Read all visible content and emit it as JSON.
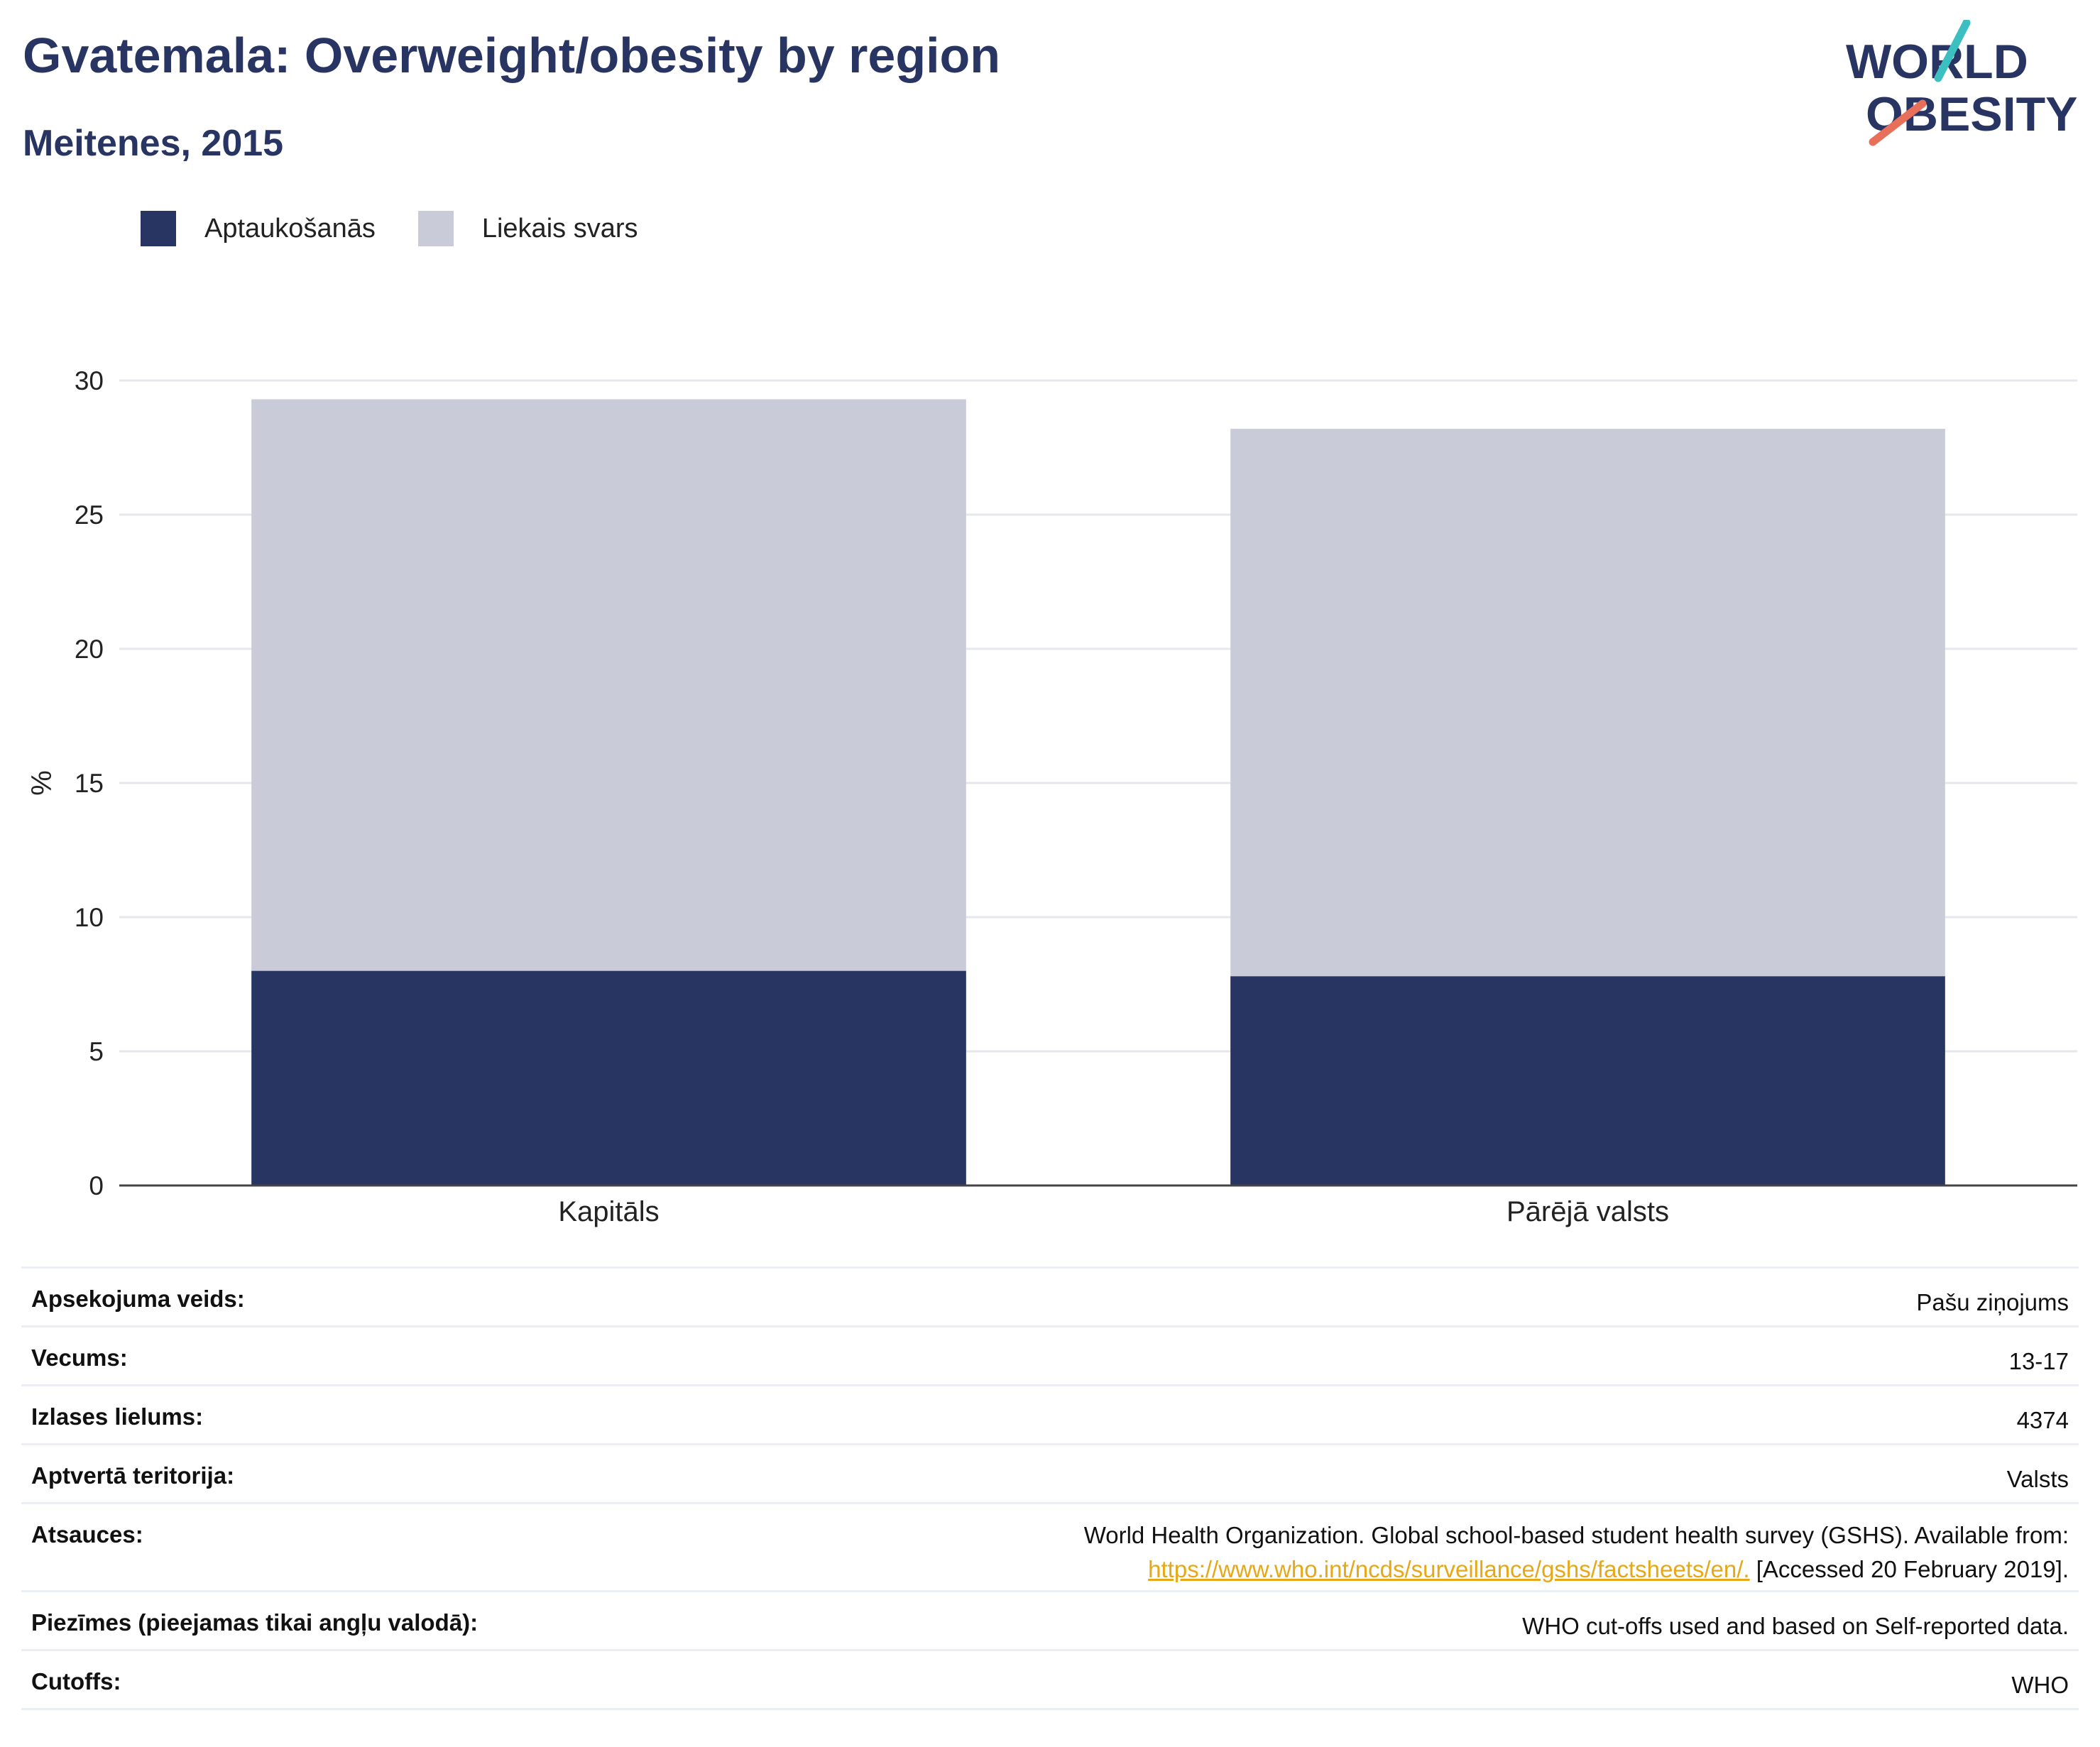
{
  "header": {
    "title": "Gvatemala: Overweight/obesity by region",
    "subtitle": "Meitenes, 2015"
  },
  "logo": {
    "line1": "WORLD",
    "line2": "OBESITY",
    "text_color": "#283562",
    "accent_teal": "#3bbfc1",
    "accent_coral": "#e8705b"
  },
  "legend": [
    {
      "label": "Aptaukošanās",
      "color": "#283562"
    },
    {
      "label": "Liekais svars",
      "color": "#c9ccd8"
    }
  ],
  "chart_data": {
    "type": "bar",
    "stacked": true,
    "categories": [
      "Kapitāls",
      "Pārējā valsts"
    ],
    "series": [
      {
        "name": "Aptaukošanās",
        "color": "#283562",
        "values": [
          8.0,
          7.8
        ]
      },
      {
        "name": "Liekais svars",
        "color": "#c9ccd8",
        "values": [
          21.3,
          20.4
        ]
      }
    ],
    "totals": [
      29.3,
      28.2
    ],
    "ylabel": "%",
    "xlabel": "",
    "ylim": [
      0,
      30
    ],
    "yticks": [
      0,
      5,
      10,
      15,
      20,
      25,
      30
    ],
    "grid": true,
    "legend_position": "top-left"
  },
  "info": [
    {
      "key": "Apsekojuma veids:",
      "value": "Pašu ziņojums"
    },
    {
      "key": "Vecums:",
      "value": "13-17"
    },
    {
      "key": "Izlases lielums:",
      "value": "4374"
    },
    {
      "key": "Aptvertā teritorija:",
      "value": "Valsts"
    },
    {
      "key": "Atsauces:",
      "value": "World Health Organization. Global school-based student health survey (GSHS). Available from:",
      "link": "https://www.who.int/ncds/surveillance/gshs/factsheets/en/.",
      "suffix": " [Accessed 20 February 2019]."
    },
    {
      "key": "Piezīmes (pieejamas tikai angļu valodā):",
      "value": "WHO cut-offs used and based on Self-reported data."
    },
    {
      "key": "Cutoffs:",
      "value": "WHO"
    }
  ]
}
